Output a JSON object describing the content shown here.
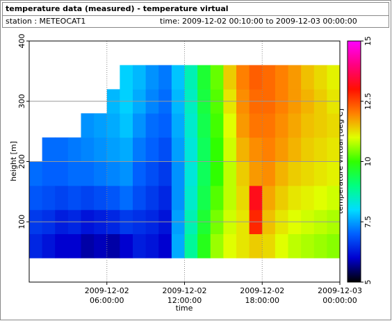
{
  "chart_data": {
    "type": "heatmap",
    "title": "temperature data (measured) - temperature virtual",
    "station": "station : METEOCAT1",
    "time_range": "time: 2009-12-02 00:10:00 to 2009-12-03 00:00:00",
    "xlabel": "time",
    "ylabel": "height [m]",
    "colorbar_label": "temperature virtual [deg C]",
    "x": [
      "2009-12-02 00:00:00",
      "2009-12-02 01:00:00",
      "2009-12-02 02:00:00",
      "2009-12-02 03:00:00",
      "2009-12-02 04:00:00",
      "2009-12-02 05:00:00",
      "2009-12-02 06:00:00",
      "2009-12-02 07:00:00",
      "2009-12-02 08:00:00",
      "2009-12-02 09:00:00",
      "2009-12-02 10:00:00",
      "2009-12-02 11:00:00",
      "2009-12-02 12:00:00",
      "2009-12-02 13:00:00",
      "2009-12-02 14:00:00",
      "2009-12-02 15:00:00",
      "2009-12-02 16:00:00",
      "2009-12-02 17:00:00",
      "2009-12-02 18:00:00",
      "2009-12-02 19:00:00",
      "2009-12-02 20:00:00",
      "2009-12-02 21:00:00",
      "2009-12-02 22:00:00",
      "2009-12-02 23:00:00",
      "2009-12-03 00:00:00"
    ],
    "y": [
      40,
      80,
      120,
      160,
      200,
      240,
      280,
      320,
      360
    ],
    "values": [
      [
        6.4,
        6.6,
        6.9,
        7.1,
        null,
        null,
        null,
        null
      ],
      [
        6.2,
        6.5,
        6.8,
        7.0,
        7.1,
        null,
        null,
        null
      ],
      [
        6.0,
        6.3,
        6.7,
        7.0,
        7.1,
        null,
        null,
        null
      ],
      [
        6.0,
        6.4,
        6.8,
        7.1,
        7.2,
        null,
        null,
        null
      ],
      [
        5.8,
        6.2,
        6.7,
        7.1,
        7.3,
        7.4,
        null,
        null
      ],
      [
        5.9,
        6.3,
        6.8,
        7.2,
        7.4,
        7.5,
        null,
        null
      ],
      [
        5.8,
        6.4,
        6.9,
        7.3,
        7.5,
        7.6,
        7.7,
        null
      ],
      [
        6.0,
        6.6,
        7.1,
        7.4,
        7.6,
        7.8,
        7.9,
        7.9
      ],
      [
        6.3,
        6.5,
        6.8,
        7.0,
        7.2,
        7.4,
        7.6,
        7.7
      ],
      [
        6.2,
        6.4,
        6.6,
        6.8,
        7.0,
        7.1,
        7.3,
        7.4
      ],
      [
        6.0,
        6.2,
        6.4,
        6.6,
        6.8,
        7.0,
        7.1,
        7.2
      ],
      [
        7.6,
        7.5,
        7.4,
        7.4,
        7.5,
        7.6,
        7.7,
        7.8
      ],
      [
        8.8,
        8.6,
        8.4,
        8.3,
        8.3,
        8.4,
        8.5,
        8.6
      ],
      [
        9.8,
        9.6,
        9.4,
        9.3,
        9.3,
        9.4,
        9.5,
        9.6
      ],
      [
        10.6,
        10.4,
        10.2,
        10.0,
        10.0,
        10.1,
        10.2,
        10.3
      ],
      [
        11.0,
        10.9,
        10.8,
        10.8,
        10.9,
        11.0,
        11.2,
        11.4
      ],
      [
        11.2,
        11.2,
        11.3,
        11.4,
        11.6,
        11.8,
        11.9,
        12.0
      ],
      [
        11.4,
        12.8,
        13.2,
        11.8,
        11.9,
        12.1,
        12.2,
        12.3
      ],
      [
        11.3,
        11.5,
        11.7,
        11.9,
        12.0,
        12.1,
        12.2,
        12.2
      ],
      [
        11.0,
        11.2,
        11.4,
        11.6,
        11.8,
        11.9,
        12.0,
        12.0
      ],
      [
        10.8,
        11.0,
        11.2,
        11.4,
        11.6,
        11.7,
        11.8,
        11.8
      ],
      [
        10.7,
        10.9,
        11.1,
        11.3,
        11.4,
        11.5,
        11.6,
        11.5
      ],
      [
        10.6,
        10.8,
        11.0,
        11.2,
        11.3,
        11.4,
        11.4,
        11.3
      ],
      [
        10.5,
        10.7,
        10.9,
        11.1,
        11.2,
        11.3,
        11.2,
        11.1
      ]
    ],
    "xlim": [
      "2009-12-02 00:00:00",
      "2009-12-03 00:00:00"
    ],
    "xticks": [
      "2009-12-02 06:00:00",
      "2009-12-02 12:00:00",
      "2009-12-02 18:00:00",
      "2009-12-03 00:00:00"
    ],
    "ylim": [
      0,
      400
    ],
    "yticks": [
      100,
      200,
      300,
      400
    ],
    "zlim": [
      5,
      15
    ],
    "zticks": [
      5,
      7.5,
      10,
      12.5,
      15
    ],
    "colors": [
      "#000000",
      "#0000d0",
      "#0060ff",
      "#00ddff",
      "#00ff80",
      "#30ff00",
      "#e0ff00",
      "#ff8000",
      "#ff1000",
      "#ff0080",
      "#ff00ff"
    ],
    "grid": true
  }
}
